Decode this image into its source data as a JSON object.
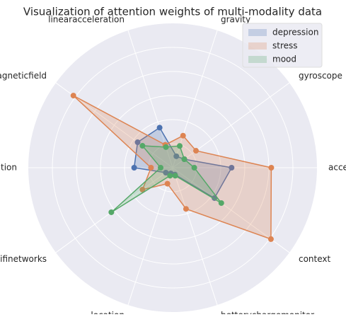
{
  "chart_data": {
    "type": "radar",
    "title": "Visualization of attention weights of multi-modality data",
    "categories": [
      "accelerometer",
      "gyroscope",
      "gravity",
      "linearacceleration",
      "magneticfield",
      "orientation",
      "wifinetworks",
      "location",
      "betterychargemonitor",
      "context"
    ],
    "series": [
      {
        "name": "depression",
        "color": "#4c72b0",
        "values": [
          0.49,
          0.12,
          0.1,
          0.35,
          0.36,
          0.32,
          0.07,
          0.05,
          0.06,
          0.43
        ]
      },
      {
        "name": "stress",
        "color": "#dd8452",
        "values": [
          0.82,
          0.24,
          0.28,
          0.2,
          1.02,
          0.18,
          0.31,
          0.14,
          0.36,
          1.01
        ]
      },
      {
        "name": "mood",
        "color": "#55a868",
        "values": [
          0.18,
          0.12,
          0.19,
          0.18,
          0.31,
          0.1,
          0.63,
          0.07,
          0.07,
          0.5
        ]
      }
    ],
    "ylim": [
      0,
      1.2
    ],
    "yticks": [
      0.2,
      0.4,
      0.6,
      0.8,
      1.0
    ],
    "grid": true,
    "legend": "upper right"
  }
}
